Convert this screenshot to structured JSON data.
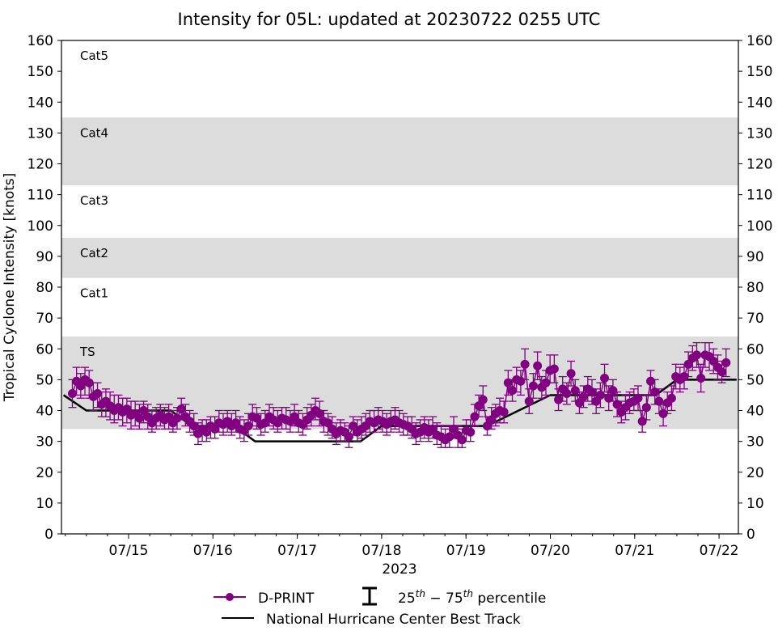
{
  "chart_data": {
    "type": "line",
    "title": "Intensity for 05L: updated at 20230722 0255 UTC",
    "xlabel": "2023",
    "ylabel": "Tropical Cyclone Intensity [knots]",
    "x_units": "hours since 2023-07-14 00 UTC",
    "xlim": [
      4.8,
      197.5
    ],
    "ylim": [
      0,
      160
    ],
    "yticks": [
      0,
      10,
      20,
      30,
      40,
      50,
      60,
      70,
      80,
      90,
      100,
      110,
      120,
      130,
      140,
      150,
      160
    ],
    "xticks": [
      {
        "x": 24,
        "label": "07/15"
      },
      {
        "x": 48,
        "label": "07/16"
      },
      {
        "x": 72,
        "label": "07/17"
      },
      {
        "x": 96,
        "label": "07/18"
      },
      {
        "x": 120,
        "label": "07/19"
      },
      {
        "x": 144,
        "label": "07/20"
      },
      {
        "x": 168,
        "label": "07/21"
      },
      {
        "x": 192,
        "label": "07/22"
      }
    ],
    "minor_tick_interval_hours": 6,
    "grid": false,
    "intensity_bands": [
      {
        "label": "TS",
        "min": 34,
        "max": 64,
        "shaded": true
      },
      {
        "label": "Cat1",
        "min": 64,
        "max": 83,
        "shaded": false
      },
      {
        "label": "Cat2",
        "min": 83,
        "max": 96,
        "shaded": true
      },
      {
        "label": "Cat3",
        "min": 96,
        "max": 113,
        "shaded": false
      },
      {
        "label": "Cat4",
        "min": 113,
        "max": 135,
        "shaded": true
      },
      {
        "label": "Cat5",
        "min": 135,
        "max": 160,
        "shaded": false
      }
    ],
    "colors": {
      "dprint": "#800080",
      "best_track": "#000000",
      "band_fill": "#dcdcdc"
    },
    "series": [
      {
        "name": "D-PRINT",
        "style": "line-marker",
        "points": [
          [
            8.0,
            45.5,
            41,
            50
          ],
          [
            9.5,
            49.5,
            45,
            54
          ],
          [
            11.0,
            48,
            44,
            52
          ],
          [
            12.5,
            50,
            45,
            54
          ],
          [
            14.0,
            49,
            44,
            53
          ],
          [
            15.5,
            44.5,
            40,
            49
          ],
          [
            17.0,
            45.5,
            41,
            49
          ],
          [
            18.5,
            42,
            38,
            46
          ],
          [
            20.0,
            43,
            38,
            47
          ],
          [
            21.5,
            41.5,
            37,
            46
          ],
          [
            23.0,
            40,
            36,
            45
          ],
          [
            24.5,
            41,
            37,
            45
          ],
          [
            26.0,
            39.5,
            35,
            44
          ],
          [
            27.5,
            40.5,
            36,
            44
          ],
          [
            29.0,
            38.5,
            34,
            43
          ],
          [
            30.5,
            39,
            35,
            43
          ],
          [
            32.0,
            37.5,
            34,
            42
          ],
          [
            33.5,
            40,
            36,
            43
          ],
          [
            35.0,
            38,
            34,
            42
          ],
          [
            36.5,
            36,
            33,
            40
          ],
          [
            38.0,
            37.5,
            34,
            41
          ],
          [
            39.5,
            38.5,
            35,
            42
          ],
          [
            41.0,
            37,
            34,
            41
          ],
          [
            42.5,
            38,
            34,
            42
          ],
          [
            44.0,
            36,
            33,
            40
          ],
          [
            45.5,
            37.5,
            34,
            41
          ],
          [
            47.0,
            40.5,
            37,
            44
          ],
          [
            48.5,
            38,
            35,
            42
          ],
          [
            50.0,
            36.5,
            33,
            40
          ],
          [
            51.5,
            35,
            32,
            39
          ],
          [
            53.0,
            32.5,
            29,
            36
          ],
          [
            54.5,
            34,
            30,
            37
          ],
          [
            56.0,
            33,
            30,
            37
          ],
          [
            57.5,
            35,
            31,
            38
          ],
          [
            59.0,
            34,
            31,
            38
          ],
          [
            60.5,
            36,
            33,
            40
          ],
          [
            62.0,
            35.5,
            32,
            39
          ],
          [
            63.5,
            36.5,
            33,
            40
          ],
          [
            65.0,
            35,
            32,
            39
          ],
          [
            66.5,
            36,
            33,
            40
          ],
          [
            68.0,
            34,
            31,
            38
          ],
          [
            69.5,
            33.5,
            30,
            37
          ],
          [
            71.0,
            35,
            32,
            39
          ],
          [
            72.5,
            38,
            35,
            42
          ],
          [
            74.0,
            37.5,
            34,
            41
          ],
          [
            75.5,
            35.5,
            32,
            39
          ],
          [
            77.0,
            36,
            33,
            40
          ],
          [
            78.5,
            38,
            35,
            42
          ],
          [
            80.0,
            37,
            34,
            41
          ],
          [
            81.5,
            36,
            33,
            40
          ],
          [
            83.0,
            37.5,
            34,
            41
          ],
          [
            84.5,
            37,
            34,
            41
          ],
          [
            86.0,
            36.5,
            33,
            40
          ],
          [
            87.5,
            38,
            35,
            42
          ],
          [
            89.0,
            36,
            33,
            40
          ],
          [
            90.5,
            35.5,
            32,
            39
          ],
          [
            92.0,
            37,
            34,
            41
          ],
          [
            93.5,
            38.5,
            35,
            42
          ],
          [
            95.0,
            40,
            37,
            44
          ],
          [
            96.5,
            39,
            35,
            43
          ],
          [
            98.0,
            36.5,
            33,
            40
          ],
          [
            99.5,
            36,
            32,
            39
          ],
          [
            101.0,
            34,
            31,
            38
          ],
          [
            102.5,
            32.5,
            29,
            36
          ],
          [
            104.0,
            33.5,
            30,
            37
          ],
          [
            105.5,
            33,
            30,
            36
          ],
          [
            107.0,
            31.5,
            28,
            35
          ],
          [
            108.5,
            35,
            32,
            38
          ],
          [
            110.0,
            33,
            30,
            37
          ],
          [
            111.5,
            34,
            31,
            38
          ],
          [
            113.0,
            35,
            32,
            39
          ],
          [
            114.5,
            36.5,
            33,
            40
          ],
          [
            116.0,
            36,
            33,
            40
          ],
          [
            117.5,
            37,
            34,
            41
          ],
          [
            119.0,
            36.5,
            33,
            40
          ],
          [
            120.5,
            35.5,
            32,
            39
          ],
          [
            122.0,
            36.5,
            33,
            40
          ],
          [
            123.5,
            37,
            34,
            41
          ],
          [
            125.0,
            36,
            33,
            40
          ],
          [
            126.5,
            35.5,
            32,
            39
          ],
          [
            128.0,
            35,
            32,
            38
          ],
          [
            129.5,
            34,
            31,
            38
          ],
          [
            131.0,
            32.5,
            29,
            36
          ],
          [
            132.5,
            33,
            30,
            37
          ],
          [
            134.0,
            34.5,
            31,
            38
          ],
          [
            135.5,
            33,
            30,
            37
          ],
          [
            137.0,
            34,
            31,
            38
          ],
          [
            138.5,
            32,
            29,
            36
          ],
          [
            140.0,
            31.5,
            28,
            35
          ],
          [
            141.5,
            30.5,
            28,
            34
          ],
          [
            143.0,
            31.5,
            28,
            35
          ],
          [
            144.5,
            34,
            31,
            38
          ],
          [
            146.0,
            32,
            28,
            35
          ],
          [
            147.5,
            30.5,
            28,
            34
          ],
          [
            149.0,
            33.5,
            30,
            37
          ],
          [
            150.5,
            33,
            30,
            37
          ],
          [
            152.0,
            38,
            35,
            42
          ],
          [
            153.5,
            41.5,
            38,
            45
          ],
          [
            155.0,
            43.5,
            40,
            48
          ],
          [
            156.5,
            35,
            32,
            38
          ],
          [
            158.0,
            37,
            34,
            41
          ],
          [
            159.5,
            39,
            35,
            42
          ],
          [
            161.0,
            40,
            36,
            44
          ],
          [
            162.5,
            39.5,
            36,
            43
          ],
          [
            164.0,
            49,
            45,
            53
          ],
          [
            165.5,
            46.5,
            43,
            50
          ],
          [
            167.0,
            50,
            46,
            54
          ],
          [
            168.5,
            49.5,
            45,
            53
          ],
          [
            170.0,
            55,
            50,
            60
          ],
          [
            171.5,
            43,
            39,
            47
          ],
          [
            173.0,
            48,
            44,
            52
          ],
          [
            174.5,
            54.5,
            50,
            59
          ],
          [
            176.0,
            47.5,
            44,
            51
          ],
          [
            177.5,
            49,
            45,
            53
          ],
          [
            179.0,
            53,
            49,
            58
          ],
          [
            180.5,
            53.5,
            49,
            58
          ],
          [
            182.0,
            43.5,
            40,
            47
          ],
          [
            183.5,
            47,
            43,
            51
          ],
          [
            185.0,
            45.5,
            42,
            49
          ],
          [
            186.5,
            52,
            48,
            56
          ],
          [
            188.0,
            46.5,
            43,
            50
          ],
          [
            189.5,
            42.5,
            39,
            46
          ],
          [
            191.0,
            44.5,
            41,
            48
          ],
          [
            192.5,
            47,
            43,
            51
          ],
          [
            194.0,
            46,
            42,
            50
          ],
          [
            195.5,
            43,
            39,
            47
          ],
          [
            197.0,
            45,
            41,
            49
          ],
          [
            198.5,
            50.5,
            46,
            55
          ],
          [
            200.0,
            44,
            40,
            48
          ],
          [
            201.5,
            46.5,
            43,
            50
          ],
          [
            203.0,
            42,
            38,
            46
          ],
          [
            204.5,
            39.5,
            36,
            43
          ],
          [
            206.0,
            41,
            37,
            45
          ],
          [
            207.5,
            42.5,
            39,
            46
          ],
          [
            209.0,
            43,
            40,
            47
          ],
          [
            210.5,
            44,
            40,
            48
          ],
          [
            212.0,
            36.5,
            33,
            40
          ],
          [
            213.5,
            41,
            37,
            45
          ],
          [
            215.0,
            49.5,
            45,
            53
          ],
          [
            216.5,
            46,
            42,
            50
          ],
          [
            218.0,
            43,
            39,
            47
          ],
          [
            219.5,
            39,
            35,
            42
          ],
          [
            221.0,
            42.5,
            39,
            46
          ],
          [
            222.5,
            44,
            40,
            48
          ],
          [
            224.0,
            51,
            47,
            55
          ],
          [
            225.5,
            50,
            46,
            54
          ],
          [
            227.0,
            51,
            47,
            55
          ],
          [
            228.5,
            55,
            51,
            59
          ],
          [
            230.0,
            57,
            53,
            61
          ],
          [
            231.5,
            58,
            54,
            62
          ],
          [
            233.0,
            50.5,
            46,
            55
          ],
          [
            234.5,
            58,
            54,
            62
          ],
          [
            236.0,
            57.5,
            53,
            62
          ],
          [
            237.5,
            56,
            52,
            60
          ],
          [
            239.0,
            54,
            50,
            58
          ],
          [
            240.5,
            52.5,
            49,
            56
          ],
          [
            242.0,
            55.5,
            51,
            60
          ]
        ]
      },
      {
        "name": "National Hurricane Center Best Track",
        "style": "line",
        "points": [
          [
            5.5,
            45
          ],
          [
            12,
            40
          ],
          [
            36,
            40
          ],
          [
            42,
            35
          ],
          [
            54,
            35
          ],
          [
            60,
            30
          ],
          [
            90,
            30
          ],
          [
            96,
            35
          ],
          [
            126,
            35
          ],
          [
            144,
            45
          ],
          [
            174,
            45
          ],
          [
            180,
            50
          ],
          [
            197,
            50
          ]
        ]
      }
    ],
    "legend": {
      "placement": "bottom-center",
      "entries": [
        {
          "label": "D-PRINT",
          "marker": "line-dot"
        },
        {
          "label_pre": "25",
          "sup1": "th",
          "mid": " − 75",
          "sup2": "th",
          "label_post": " percentile",
          "marker": "errorbar"
        },
        {
          "label": "National Hurricane Center Best Track",
          "marker": "line"
        }
      ]
    }
  }
}
